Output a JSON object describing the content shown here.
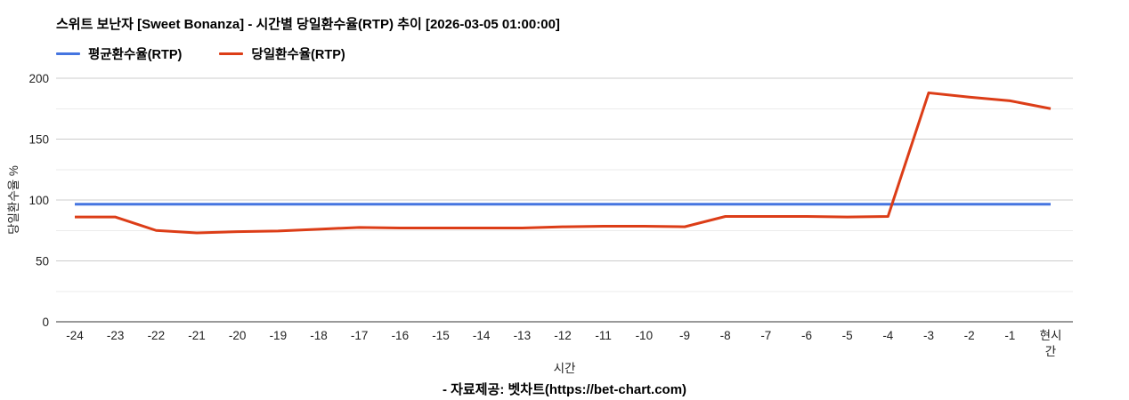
{
  "title": "스위트 보난자 [Sweet Bonanza] - 시간별 당일환수율(RTP) 추이 [2026-03-05 01:00:00]",
  "source_note": "- 자료제공: 벳차트(https://bet-chart.com)",
  "chart_data": {
    "type": "line",
    "title": "스위트 보난자 [Sweet Bonanza] - 시간별 당일환수율(RTP) 추이 [2026-03-05 01:00:00]",
    "xlabel": "시간",
    "ylabel": "당일환수율 %",
    "ylim": [
      0,
      200
    ],
    "yticks": [
      0,
      50,
      100,
      150,
      200
    ],
    "minor_gridlines": [
      25,
      75,
      125,
      175
    ],
    "grid": true,
    "legend_position": "top-left",
    "axis_text_color": "#222222",
    "major_grid_color": "#cccccc",
    "minor_grid_color": "#ebebeb",
    "baseline_color": "#333333",
    "categories": [
      "-24",
      "-23",
      "-22",
      "-21",
      "-20",
      "-19",
      "-18",
      "-17",
      "-16",
      "-15",
      "-14",
      "-13",
      "-12",
      "-11",
      "-10",
      "-9",
      "-8",
      "-7",
      "-6",
      "-5",
      "-4",
      "-3",
      "-2",
      "-1",
      "현시간"
    ],
    "series": [
      {
        "name": "평균환수율(RTP)",
        "color": "#4575e0",
        "values": [
          96.5,
          96.5,
          96.5,
          96.5,
          96.5,
          96.5,
          96.5,
          96.5,
          96.5,
          96.5,
          96.5,
          96.5,
          96.5,
          96.5,
          96.5,
          96.5,
          96.5,
          96.5,
          96.5,
          96.5,
          96.5,
          96.5,
          96.5,
          96.5,
          96.5
        ]
      },
      {
        "name": "당일환수율(RTP)",
        "color": "#dc3d17",
        "values": [
          86,
          86,
          75,
          73,
          74,
          74.5,
          76,
          77.5,
          77,
          77,
          77,
          77,
          78,
          78.5,
          78.5,
          78,
          86.5,
          86.5,
          86.5,
          86,
          86.5,
          188,
          184.5,
          181.5,
          175
        ]
      }
    ]
  }
}
